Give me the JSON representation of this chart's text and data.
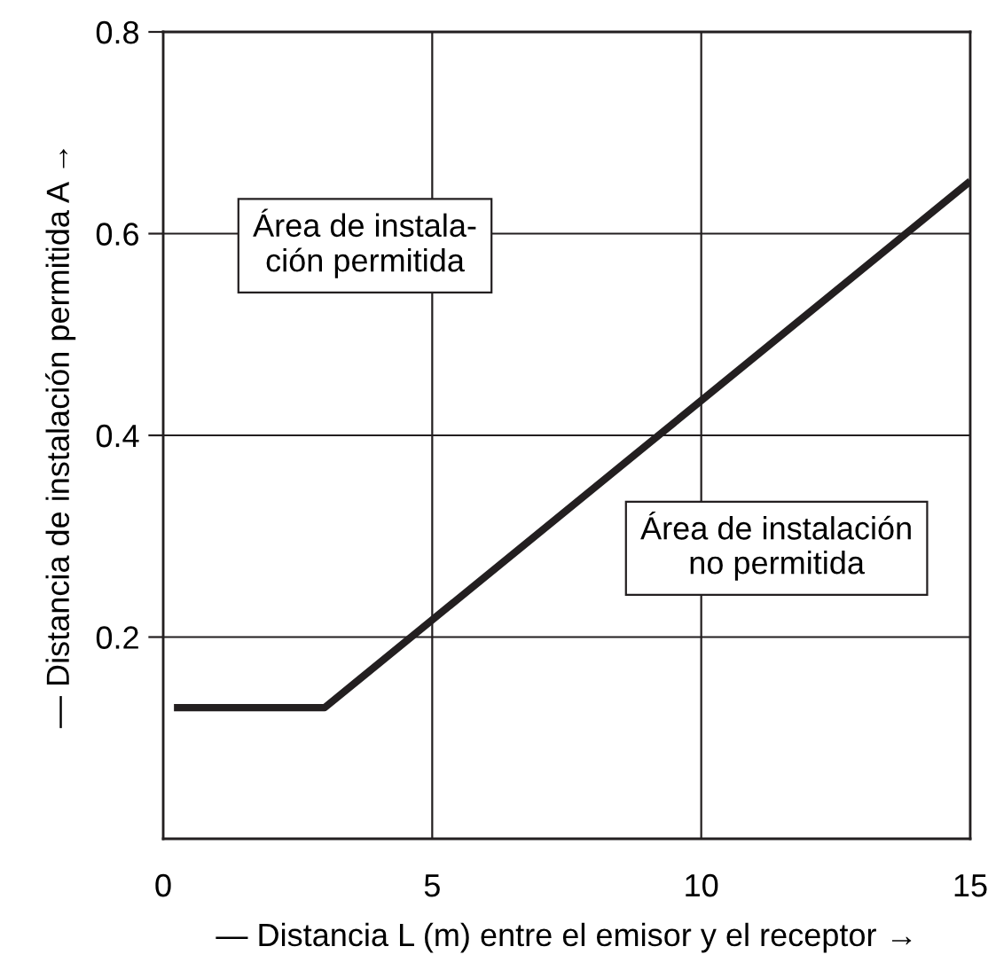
{
  "chart_data": {
    "type": "line",
    "xlabel": "— Distancia L (m) entre el emisor y el receptor →",
    "ylabel": "— Distancia de instalación permitida A →",
    "x": [
      0.2,
      3.0,
      15
    ],
    "series": [
      {
        "color": "#231f20",
        "values": [
          0.13,
          0.13,
          0.652
        ]
      }
    ],
    "xlim": [
      0,
      15
    ],
    "xticks": [
      0,
      5,
      10,
      15
    ],
    "ylim": [
      0,
      0.8
    ],
    "yticks": [
      0.2,
      0.4,
      0.6,
      0.8
    ],
    "grid": true,
    "line_style": "solid",
    "marker": "none",
    "annotations": [
      "Área de instala-\nción permitida",
      "Área de instalación\nno permitida"
    ]
  }
}
